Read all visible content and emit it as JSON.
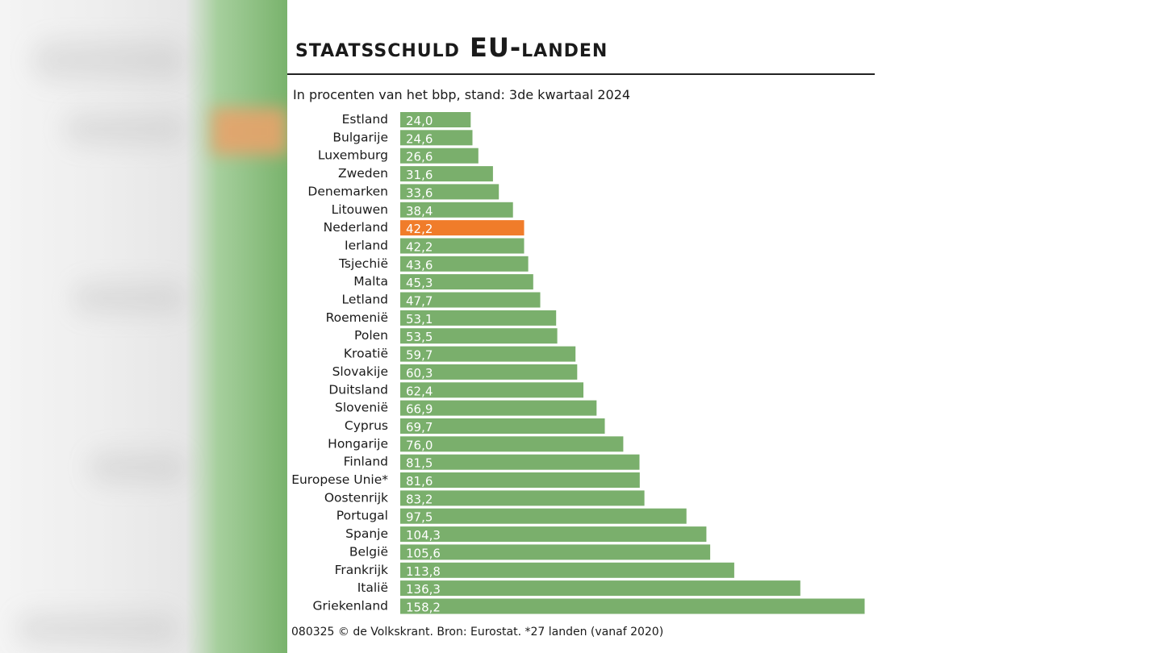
{
  "colors": {
    "bar": "#7aaf6c",
    "highlight": "#f07c2a",
    "bar_label": "#ffffff",
    "text": "#1a1a1a"
  },
  "chart_data": {
    "type": "bar",
    "orientation": "horizontal",
    "title": "staatsschuld EU-landen",
    "subtitle": "In procenten van het bbp, stand: 3de kwartaal 2024",
    "source": "080325 © de Volkskrant. Bron: Eurostat. *27 landen (vanaf 2020)",
    "xlim": [
      0,
      160
    ],
    "grid": false,
    "highlight_category": "Nederland",
    "categories": [
      "Estland",
      "Bulgarije",
      "Luxemburg",
      "Zweden",
      "Denemarken",
      "Litouwen",
      "Nederland",
      "Ierland",
      "Tsjechië",
      "Malta",
      "Letland",
      "Roemenië",
      "Polen",
      "Kroatië",
      "Slovakije",
      "Duitsland",
      "Slovenië",
      "Cyprus",
      "Hongarije",
      "Finland",
      "Europese Unie*",
      "Oostenrijk",
      "Portugal",
      "Spanje",
      "België",
      "Frankrijk",
      "Italië",
      "Griekenland"
    ],
    "values": [
      24.0,
      24.6,
      26.6,
      31.6,
      33.6,
      38.4,
      42.2,
      42.2,
      43.6,
      45.3,
      47.7,
      53.1,
      53.5,
      59.7,
      60.3,
      62.4,
      66.9,
      69.7,
      76.0,
      81.5,
      81.6,
      83.2,
      97.5,
      104.3,
      105.6,
      113.8,
      136.3,
      158.2
    ],
    "value_labels": [
      "24,0",
      "24,6",
      "26,6",
      "31,6",
      "33,6",
      "38,4",
      "42,2",
      "42,2",
      "43,6",
      "45,3",
      "47,7",
      "53,1",
      "53,5",
      "59,7",
      "60,3",
      "62,4",
      "66,9",
      "69,7",
      "76,0",
      "81,5",
      "81,6",
      "83,2",
      "97,5",
      "104,3",
      "105,6",
      "113,8",
      "136,3",
      "158,2"
    ]
  }
}
